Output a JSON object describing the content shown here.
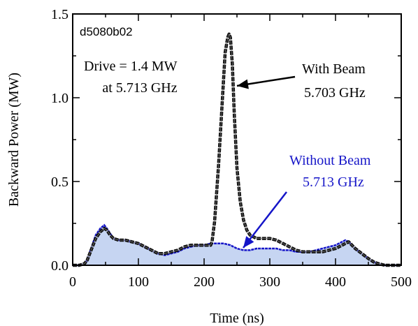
{
  "chart_data": {
    "type": "line",
    "id_label": "d5080b02",
    "xlabel": "Time (ns)",
    "ylabel": "Backward Power (MW)",
    "xlim": [
      0,
      500
    ],
    "ylim": [
      0,
      1.5
    ],
    "xticks": [
      0,
      100,
      200,
      300,
      400,
      500
    ],
    "xtick_labels": [
      "0",
      "100",
      "200",
      "300",
      "400",
      "500"
    ],
    "yticks": [
      0,
      0.5,
      1.0,
      1.5
    ],
    "ytick_labels": [
      "0.0",
      "0.5",
      "1.0",
      "1.5"
    ],
    "grid": false,
    "annotations": {
      "drive_line1": "Drive = 1.4 MW",
      "drive_line2": "at 5.713 GHz",
      "with_beam_line1": "With Beam",
      "with_beam_line2": "5.703 GHz",
      "without_beam_line1": "Without Beam",
      "without_beam_line2": "5.713 GHz"
    },
    "colors": {
      "with_beam": "#111111",
      "without_beam_line": "#1515c8",
      "without_beam_fill": "#c6d5f2"
    },
    "series": [
      {
        "x": [
          0,
          10,
          18,
          22,
          28,
          35,
          42,
          48,
          52,
          57,
          62,
          70,
          80,
          90,
          100,
          110,
          120,
          130,
          140,
          150,
          160,
          170,
          180,
          190,
          200,
          210,
          212,
          216,
          222,
          228,
          232,
          236,
          238,
          240,
          243,
          246,
          250,
          255,
          260,
          265,
          270,
          280,
          290,
          300,
          310,
          320,
          330,
          340,
          350,
          360,
          370,
          380,
          390,
          400,
          410,
          415,
          420,
          425,
          430,
          440,
          450,
          458,
          465,
          475,
          490,
          500
        ],
        "y": [
          0.0,
          0.0,
          0.01,
          0.03,
          0.09,
          0.16,
          0.2,
          0.22,
          0.21,
          0.18,
          0.16,
          0.15,
          0.15,
          0.14,
          0.13,
          0.11,
          0.09,
          0.07,
          0.07,
          0.08,
          0.09,
          0.11,
          0.12,
          0.12,
          0.12,
          0.12,
          0.14,
          0.26,
          0.6,
          1.0,
          1.27,
          1.36,
          1.38,
          1.36,
          1.2,
          0.9,
          0.58,
          0.38,
          0.27,
          0.21,
          0.18,
          0.16,
          0.16,
          0.16,
          0.15,
          0.13,
          0.11,
          0.09,
          0.08,
          0.08,
          0.08,
          0.08,
          0.09,
          0.1,
          0.12,
          0.13,
          0.14,
          0.12,
          0.1,
          0.07,
          0.04,
          0.02,
          0.01,
          0.0,
          0.0,
          0.0
        ]
      },
      {
        "x": [
          0,
          10,
          18,
          22,
          28,
          35,
          42,
          48,
          52,
          57,
          62,
          70,
          80,
          90,
          100,
          110,
          120,
          130,
          140,
          150,
          160,
          170,
          180,
          190,
          200,
          210,
          220,
          230,
          240,
          250,
          260,
          270,
          280,
          290,
          300,
          310,
          320,
          330,
          340,
          350,
          360,
          370,
          380,
          390,
          400,
          410,
          415,
          420,
          425,
          430,
          440,
          450,
          458,
          465,
          475,
          490,
          500
        ],
        "y": [
          0.0,
          0.0,
          0.01,
          0.03,
          0.1,
          0.18,
          0.22,
          0.24,
          0.22,
          0.19,
          0.16,
          0.15,
          0.15,
          0.14,
          0.13,
          0.11,
          0.09,
          0.07,
          0.06,
          0.07,
          0.08,
          0.1,
          0.11,
          0.12,
          0.12,
          0.13,
          0.13,
          0.13,
          0.12,
          0.1,
          0.09,
          0.09,
          0.1,
          0.1,
          0.1,
          0.1,
          0.09,
          0.09,
          0.08,
          0.08,
          0.08,
          0.09,
          0.1,
          0.11,
          0.12,
          0.14,
          0.15,
          0.14,
          0.12,
          0.1,
          0.07,
          0.04,
          0.02,
          0.01,
          0.0,
          0.0,
          0.0
        ]
      }
    ]
  }
}
